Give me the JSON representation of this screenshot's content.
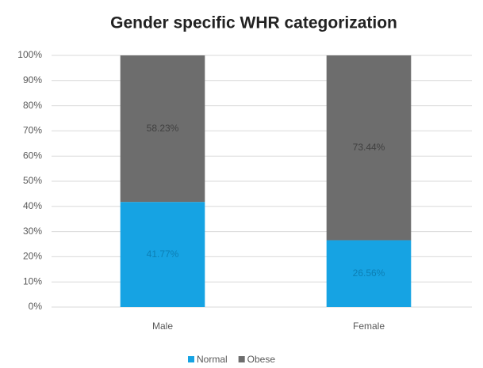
{
  "chart_data": {
    "type": "stacked_bar",
    "title": "Gender specific WHR categorization",
    "categories": [
      "Male",
      "Female"
    ],
    "series": [
      {
        "name": "Normal",
        "color": "#16a3e3",
        "values": [
          41.77,
          26.56
        ],
        "value_labels": [
          "41.77%",
          "26.56%"
        ]
      },
      {
        "name": "Obese",
        "color": "#6d6d6d",
        "values": [
          58.23,
          73.44
        ],
        "value_labels": [
          "58.23%",
          "73.44%"
        ]
      }
    ],
    "ylim": [
      0,
      100
    ],
    "yticks": [
      {
        "value": 0,
        "label": "0%"
      },
      {
        "value": 10,
        "label": "10%"
      },
      {
        "value": 20,
        "label": "20%"
      },
      {
        "value": 30,
        "label": "30%"
      },
      {
        "value": 40,
        "label": "40%"
      },
      {
        "value": 50,
        "label": "50%"
      },
      {
        "value": 60,
        "label": "60%"
      },
      {
        "value": 70,
        "label": "70%"
      },
      {
        "value": 80,
        "label": "80%"
      },
      {
        "value": 90,
        "label": "90%"
      },
      {
        "value": 100,
        "label": "100%"
      }
    ],
    "grid": true,
    "legend": "bottom"
  }
}
